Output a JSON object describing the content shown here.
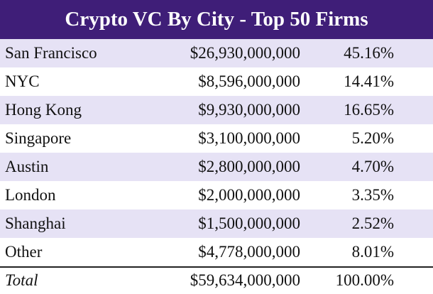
{
  "header": {
    "title": "Crypto VC By City - Top 50 Firms"
  },
  "table": {
    "rows": [
      [
        "San Francisco",
        "$26,930,000,000",
        "45.16%"
      ],
      [
        "NYC",
        "$8,596,000,000",
        "14.41%"
      ],
      [
        "Hong Kong",
        "$9,930,000,000",
        "16.65%"
      ],
      [
        "Singapore",
        "$3,100,000,000",
        "5.20%"
      ],
      [
        "Austin",
        "$2,800,000,000",
        "4.70%"
      ],
      [
        "London",
        "$2,000,000,000",
        "3.35%"
      ],
      [
        "Shanghai",
        "$1,500,000,000",
        "2.52%"
      ],
      [
        "Other",
        "$4,778,000,000",
        "8.01%"
      ]
    ],
    "total": [
      "Total",
      "$59,634,000,000",
      "100.00%"
    ]
  }
}
